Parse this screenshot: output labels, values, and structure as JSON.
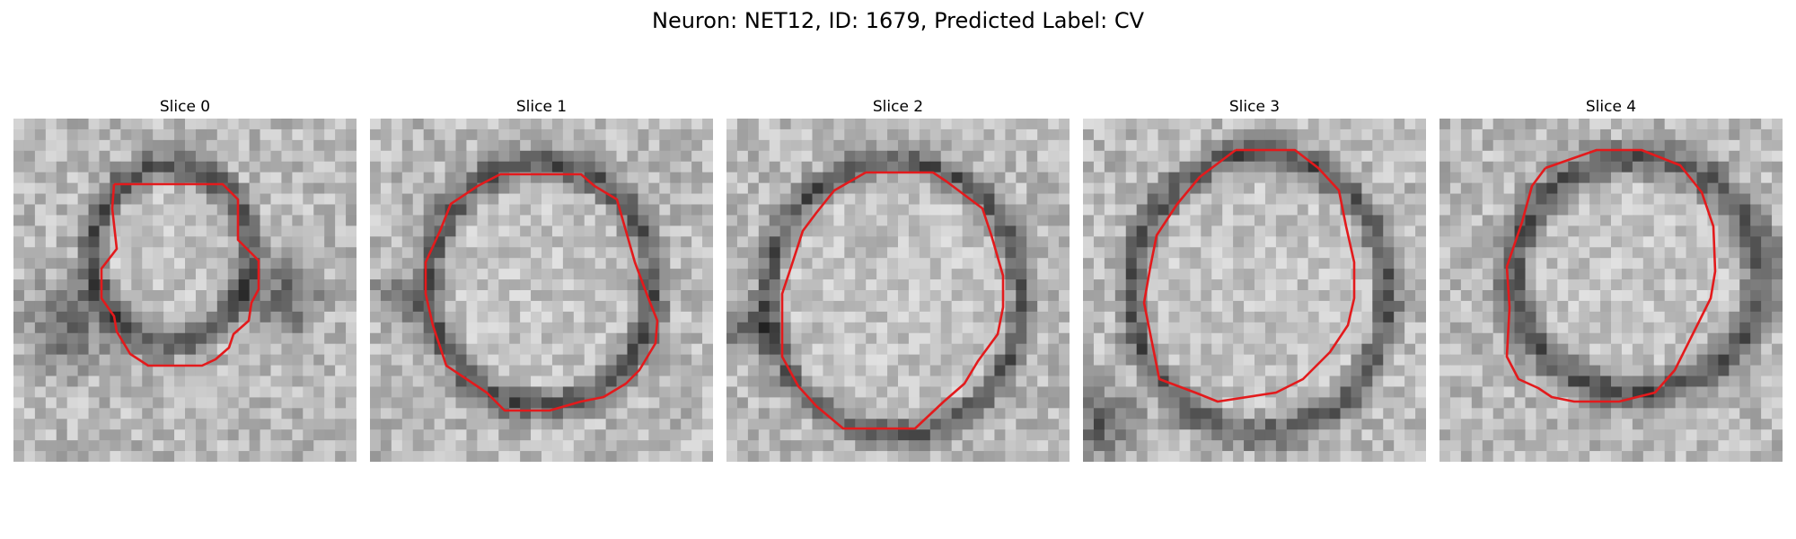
{
  "figure": {
    "title": "Neuron: NET12, ID: 1679, Predicted Label: CV",
    "contour_color": "#e31a1c"
  },
  "panels": [
    {
      "title": "Slice 0"
    },
    {
      "title": "Slice 1"
    },
    {
      "title": "Slice 2"
    },
    {
      "title": "Slice 3"
    },
    {
      "title": "Slice 4"
    }
  ]
}
